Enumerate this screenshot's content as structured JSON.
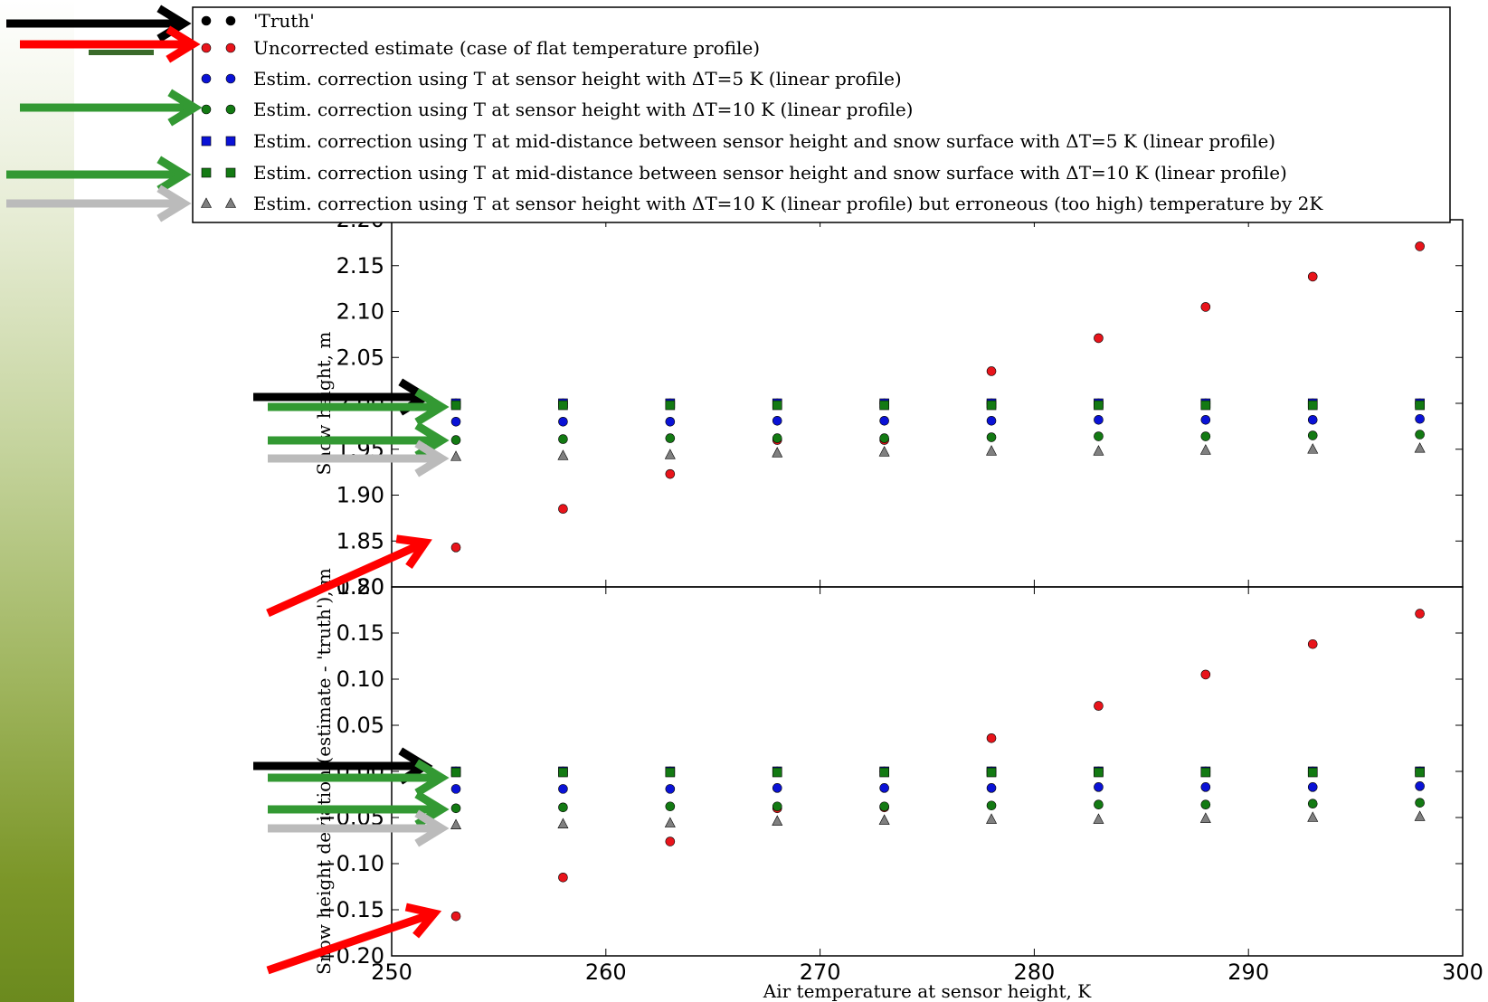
{
  "chart_data": [
    {
      "type": "scatter",
      "xlabel": "",
      "ylabel": "Snow height, m",
      "xlim": [
        250,
        300
      ],
      "ylim": [
        1.8,
        2.2
      ],
      "xticks": [
        "250",
        "260",
        "270",
        "280",
        "290",
        "300"
      ],
      "yticks": [
        "1.80",
        "1.85",
        "1.90",
        "1.95",
        "2.00",
        "2.05",
        "2.10",
        "2.15",
        "2.20"
      ],
      "x": [
        253,
        258,
        263,
        268,
        273,
        278,
        283,
        288,
        293,
        298
      ],
      "series": [
        {
          "key": "truth",
          "values": [
            2.0,
            2.0,
            2.0,
            2.0,
            2.0,
            2.0,
            2.0,
            2.0,
            2.0,
            2.0
          ]
        },
        {
          "key": "uncorrected",
          "values": [
            1.843,
            1.885,
            1.923,
            1.96,
            1.96,
            2.035,
            2.071,
            2.105,
            2.138,
            2.171
          ]
        },
        {
          "key": "sensor5",
          "values": [
            1.98,
            1.98,
            1.98,
            1.981,
            1.981,
            1.981,
            1.982,
            1.982,
            1.982,
            1.983
          ]
        },
        {
          "key": "sensor10",
          "values": [
            1.96,
            1.961,
            1.962,
            1.962,
            1.962,
            1.963,
            1.964,
            1.964,
            1.965,
            1.966
          ]
        },
        {
          "key": "mid5",
          "values": [
            2.0,
            2.0,
            2.0,
            2.0,
            2.0,
            2.0,
            2.0,
            2.0,
            2.0,
            2.0
          ]
        },
        {
          "key": "mid10",
          "values": [
            1.998,
            1.998,
            1.998,
            1.998,
            1.998,
            1.998,
            1.998,
            1.998,
            1.998,
            1.998
          ]
        },
        {
          "key": "sensor10_err",
          "values": [
            1.942,
            1.943,
            1.944,
            1.946,
            1.947,
            1.948,
            1.948,
            1.949,
            1.95,
            1.951
          ]
        }
      ]
    },
    {
      "type": "scatter",
      "xlabel": "Air temperature at sensor height, K",
      "ylabel": "Snow height deviation (estimate - 'truth'), m",
      "xlim": [
        250,
        300
      ],
      "ylim": [
        -0.2,
        0.2
      ],
      "xticks": [
        "250",
        "260",
        "270",
        "280",
        "290",
        "300"
      ],
      "yticks": [
        "−0.20",
        "−0.15",
        "−0.10",
        "−0.05",
        "0.00",
        "0.05",
        "0.10",
        "0.15",
        "0.20"
      ],
      "x": [
        253,
        258,
        263,
        268,
        273,
        278,
        283,
        288,
        293,
        298
      ],
      "series": [
        {
          "key": "truth",
          "values": [
            0,
            0,
            0,
            0,
            0,
            0,
            0,
            0,
            0,
            0
          ]
        },
        {
          "key": "uncorrected",
          "values": [
            -0.157,
            -0.115,
            -0.076,
            -0.04,
            -0.039,
            0.036,
            0.071,
            0.105,
            0.138,
            0.171
          ]
        },
        {
          "key": "sensor5",
          "values": [
            -0.019,
            -0.019,
            -0.019,
            -0.018,
            -0.018,
            -0.018,
            -0.017,
            -0.017,
            -0.017,
            -0.016
          ]
        },
        {
          "key": "sensor10",
          "values": [
            -0.04,
            -0.039,
            -0.038,
            -0.038,
            -0.038,
            -0.037,
            -0.036,
            -0.036,
            -0.035,
            -0.034
          ]
        },
        {
          "key": "mid5",
          "values": [
            0,
            0,
            0,
            0,
            0,
            0,
            0,
            0,
            0,
            0
          ]
        },
        {
          "key": "mid10",
          "values": [
            -0.001,
            -0.001,
            -0.001,
            -0.001,
            -0.001,
            -0.001,
            -0.001,
            -0.001,
            -0.001,
            -0.001
          ]
        },
        {
          "key": "sensor10_err",
          "values": [
            -0.058,
            -0.057,
            -0.056,
            -0.054,
            -0.053,
            -0.052,
            -0.052,
            -0.051,
            -0.05,
            -0.049
          ]
        }
      ]
    }
  ],
  "legend": {
    "placement": "top, above plots",
    "entries": [
      {
        "key": "truth",
        "label": "'Truth'",
        "color": "#000000",
        "marker": "circle"
      },
      {
        "key": "uncorrected",
        "label": "Uncorrected estimate (case of flat temperature profile)",
        "color": "#e8141b",
        "marker": "circle"
      },
      {
        "key": "sensor5",
        "label": "Estim. correction using T at sensor height with ΔT=5 K (linear profile)",
        "color": "#0a12d6",
        "marker": "circle"
      },
      {
        "key": "sensor10",
        "label": "Estim. correction using T at sensor height with ΔT=10 K (linear profile)",
        "color": "#137a13",
        "marker": "circle"
      },
      {
        "key": "mid5",
        "label": "Estim. correction using T at mid-distance between sensor height and snow surface with ΔT=5 K (linear profile)",
        "color": "#0a12d6",
        "marker": "square"
      },
      {
        "key": "mid10",
        "label": "Estim. correction using T at mid-distance between sensor height and snow surface with ΔT=10 K (linear profile)",
        "color": "#137a13",
        "marker": "square"
      },
      {
        "key": "sensor10_err",
        "label": "Estim. correction using T at sensor height with ΔT=10 K (linear profile) but erroneous (too high) temperature by 2K",
        "color": "#808080",
        "marker": "triangle"
      }
    ]
  },
  "annotation_arrows": {
    "legend_side": [
      {
        "target": "truth",
        "color": "#000000"
      },
      {
        "target": "uncorrected",
        "color": "#ff0000"
      },
      {
        "target": "sensor10",
        "color": "#339933"
      },
      {
        "target": "mid10",
        "color": "#339933"
      },
      {
        "target": "sensor10_err",
        "color": "#bbbbbb"
      }
    ],
    "per_panel": [
      {
        "target": "truth",
        "color": "#000000"
      },
      {
        "target": "mid10",
        "color": "#339933"
      },
      {
        "target": "sensor10",
        "color": "#339933"
      },
      {
        "target": "sensor10_err",
        "color": "#bbbbbb"
      },
      {
        "target": "uncorrected",
        "color": "#ff0000"
      }
    ]
  }
}
